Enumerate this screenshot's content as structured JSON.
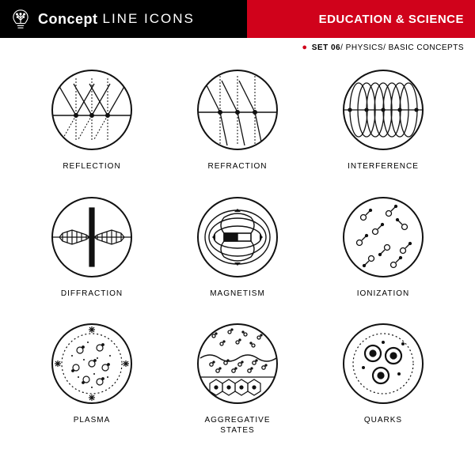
{
  "header": {
    "brand_bold": "Concept",
    "brand_light": "LINE ICONS",
    "category": "EDUCATION & SCIENCE"
  },
  "subheader": {
    "set": "SET 06",
    "topic": "PHYSICS",
    "subtopic": "BASIC CONCEPTS"
  },
  "colors": {
    "black": "#000000",
    "red": "#d0021b",
    "white": "#ffffff",
    "stroke": "#111111"
  },
  "icons": [
    {
      "id": "reflection",
      "label": "REFLECTION"
    },
    {
      "id": "refraction",
      "label": "REFRACTION"
    },
    {
      "id": "interference",
      "label": "INTERFERENCE"
    },
    {
      "id": "diffraction",
      "label": "DIFFRACTION"
    },
    {
      "id": "magnetism",
      "label": "MAGNETISM"
    },
    {
      "id": "ionization",
      "label": "IONIZATION"
    },
    {
      "id": "plasma",
      "label": "PLASMA"
    },
    {
      "id": "aggregative",
      "label": "AGGREGATIVE\nSTATES"
    },
    {
      "id": "quarks",
      "label": "QUARKS"
    }
  ],
  "style": {
    "ring_stroke_width": 2,
    "icon_stroke_width": 1.3,
    "label_fontsize": 10,
    "label_letter_spacing": 1
  }
}
